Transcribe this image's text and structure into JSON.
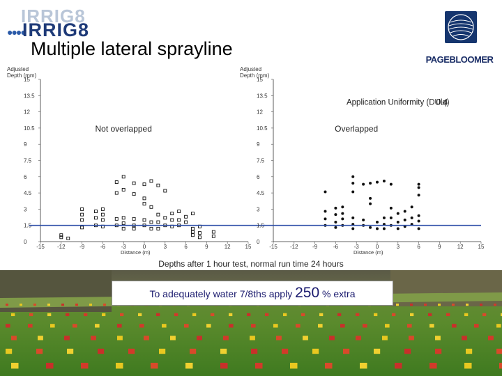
{
  "logo_left": {
    "ghost_text": "IRRIG8",
    "main_text": "IRRIG8"
  },
  "logo_right": {
    "name": "PAGEBLOOMER"
  },
  "title": "Multiple lateral sprayline",
  "caption": "Depths after 1 hour test, normal run time 24 hours",
  "callout": {
    "prefix": "To adequately water 7/8ths apply",
    "value": "250",
    "suffix": "% extra"
  },
  "colors": {
    "title": "#000000",
    "callout_text": "#1a1a6e",
    "threshold_line": "#2e4fa8",
    "logo_blue": "#1e3a78"
  },
  "chart_data": [
    {
      "type": "scatter",
      "ylabel": "Adjusted Depth (mm)",
      "xlabel": "Distance (m)",
      "annotation": "Not overlapped",
      "marker": "square",
      "xlim": [
        -15,
        15
      ],
      "ylim": [
        0,
        15
      ],
      "xticks": [
        "-15",
        "-12",
        "-9",
        "-6",
        "-3",
        "0",
        "3",
        "6",
        "9",
        "12",
        "15"
      ],
      "yticks": [
        "0",
        "1.5",
        "3",
        "4.5",
        "6",
        "7.5",
        "9",
        "10.5",
        "12",
        "13.5",
        "15"
      ],
      "threshold": 1.5,
      "points": [
        {
          "x": -12,
          "y": 0.4
        },
        {
          "x": -12,
          "y": 0.6
        },
        {
          "x": -11,
          "y": 0.3
        },
        {
          "x": -9,
          "y": 1.3
        },
        {
          "x": -9,
          "y": 2.0
        },
        {
          "x": -9,
          "y": 2.5
        },
        {
          "x": -9,
          "y": 3.0
        },
        {
          "x": -7,
          "y": 1.5
        },
        {
          "x": -7,
          "y": 2.2
        },
        {
          "x": -7,
          "y": 2.8
        },
        {
          "x": -6,
          "y": 1.4
        },
        {
          "x": -6,
          "y": 2.0
        },
        {
          "x": -6,
          "y": 2.5
        },
        {
          "x": -6,
          "y": 3.0
        },
        {
          "x": -4,
          "y": 1.5
        },
        {
          "x": -4,
          "y": 2.1
        },
        {
          "x": -4,
          "y": 4.5
        },
        {
          "x": -4,
          "y": 5.5
        },
        {
          "x": -3,
          "y": 1.2
        },
        {
          "x": -3,
          "y": 1.7
        },
        {
          "x": -3,
          "y": 2.2
        },
        {
          "x": -3,
          "y": 4.8
        },
        {
          "x": -3,
          "y": 6.0
        },
        {
          "x": -1.5,
          "y": 1.2
        },
        {
          "x": -1.5,
          "y": 1.5
        },
        {
          "x": -1.5,
          "y": 2.1
        },
        {
          "x": -1.5,
          "y": 4.4
        },
        {
          "x": -1.5,
          "y": 5.4
        },
        {
          "x": 0,
          "y": 1.5
        },
        {
          "x": 0,
          "y": 2.0
        },
        {
          "x": 0,
          "y": 3.5
        },
        {
          "x": 0,
          "y": 4.0
        },
        {
          "x": 0,
          "y": 5.3
        },
        {
          "x": 1,
          "y": 1.2
        },
        {
          "x": 1,
          "y": 1.8
        },
        {
          "x": 1,
          "y": 3.2
        },
        {
          "x": 1,
          "y": 5.6
        },
        {
          "x": 2,
          "y": 1.2
        },
        {
          "x": 2,
          "y": 1.8
        },
        {
          "x": 2,
          "y": 2.5
        },
        {
          "x": 2,
          "y": 5.2
        },
        {
          "x": 3,
          "y": 1.5
        },
        {
          "x": 3,
          "y": 2.2
        },
        {
          "x": 3,
          "y": 4.7
        },
        {
          "x": 4,
          "y": 1.4
        },
        {
          "x": 4,
          "y": 2.0
        },
        {
          "x": 4,
          "y": 2.6
        },
        {
          "x": 5,
          "y": 1.5
        },
        {
          "x": 5,
          "y": 2.0
        },
        {
          "x": 5,
          "y": 2.8
        },
        {
          "x": 6,
          "y": 1.8
        },
        {
          "x": 6,
          "y": 2.3
        },
        {
          "x": 7,
          "y": 0.6
        },
        {
          "x": 7,
          "y": 0.9
        },
        {
          "x": 7,
          "y": 1.2
        },
        {
          "x": 7,
          "y": 2.6
        },
        {
          "x": 8,
          "y": 0.4
        },
        {
          "x": 8,
          "y": 0.8
        },
        {
          "x": 8,
          "y": 1.4
        },
        {
          "x": 10,
          "y": 0.5
        },
        {
          "x": 10,
          "y": 0.9
        }
      ]
    },
    {
      "type": "scatter",
      "ylabel": "Adjusted Depth (mm)",
      "xlabel": "Distance (m)",
      "annotation": "Overlapped",
      "metric_label": "Application Uniformity (DUlq)",
      "metric_value": "0.4",
      "marker": "circle",
      "xlim": [
        -15,
        15
      ],
      "ylim": [
        0,
        15
      ],
      "xticks": [
        "-15",
        "-12",
        "-9",
        "-6",
        "-3",
        "0",
        "3",
        "6",
        "9",
        "12",
        "15"
      ],
      "yticks": [
        "0",
        "1.5",
        "3",
        "4.5",
        "6",
        "7.5",
        "9",
        "10.5",
        "12",
        "13.5",
        "15"
      ],
      "threshold": 1.5,
      "points": [
        {
          "x": -7.5,
          "y": 1.5
        },
        {
          "x": -7.5,
          "y": 2.1
        },
        {
          "x": -7.5,
          "y": 2.8
        },
        {
          "x": -7.5,
          "y": 4.6
        },
        {
          "x": -6,
          "y": 1.3
        },
        {
          "x": -6,
          "y": 1.8
        },
        {
          "x": -6,
          "y": 2.5
        },
        {
          "x": -6,
          "y": 3.1
        },
        {
          "x": -5,
          "y": 1.5
        },
        {
          "x": -5,
          "y": 2.1
        },
        {
          "x": -5,
          "y": 2.6
        },
        {
          "x": -5,
          "y": 3.2
        },
        {
          "x": -3.5,
          "y": 1.2
        },
        {
          "x": -3.5,
          "y": 1.6
        },
        {
          "x": -3.5,
          "y": 2.2
        },
        {
          "x": -3.5,
          "y": 4.6
        },
        {
          "x": -3.5,
          "y": 5.4
        },
        {
          "x": -3.5,
          "y": 6.0
        },
        {
          "x": -2,
          "y": 1.5
        },
        {
          "x": -2,
          "y": 2.0
        },
        {
          "x": -2,
          "y": 5.3
        },
        {
          "x": -1,
          "y": 1.3
        },
        {
          "x": -1,
          "y": 3.5
        },
        {
          "x": -1,
          "y": 4.0
        },
        {
          "x": -1,
          "y": 5.4
        },
        {
          "x": 0,
          "y": 1.2
        },
        {
          "x": 0,
          "y": 1.8
        },
        {
          "x": 0,
          "y": 5.5
        },
        {
          "x": 1,
          "y": 1.2
        },
        {
          "x": 1,
          "y": 1.6
        },
        {
          "x": 1,
          "y": 2.2
        },
        {
          "x": 1,
          "y": 5.6
        },
        {
          "x": 2,
          "y": 1.5
        },
        {
          "x": 2,
          "y": 2.2
        },
        {
          "x": 2,
          "y": 3.1
        },
        {
          "x": 2,
          "y": 5.3
        },
        {
          "x": 3,
          "y": 1.2
        },
        {
          "x": 3,
          "y": 1.8
        },
        {
          "x": 3,
          "y": 2.6
        },
        {
          "x": 4,
          "y": 1.4
        },
        {
          "x": 4,
          "y": 2.0
        },
        {
          "x": 4,
          "y": 2.8
        },
        {
          "x": 5,
          "y": 1.6
        },
        {
          "x": 5,
          "y": 2.2
        },
        {
          "x": 5,
          "y": 3.2
        },
        {
          "x": 6,
          "y": 1.2
        },
        {
          "x": 6,
          "y": 1.9
        },
        {
          "x": 6,
          "y": 2.4
        },
        {
          "x": 6,
          "y": 4.3
        },
        {
          "x": 6,
          "y": 5.0
        },
        {
          "x": 6,
          "y": 5.3
        }
      ]
    }
  ]
}
